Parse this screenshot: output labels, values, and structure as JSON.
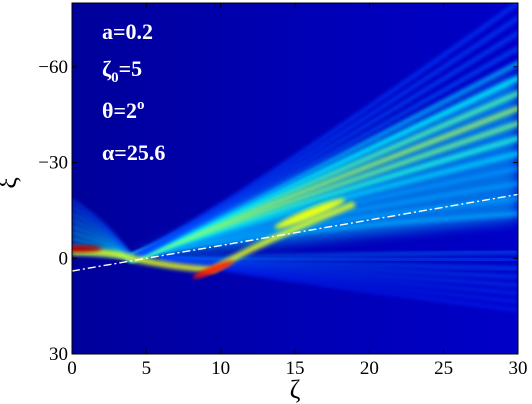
{
  "chart_data": {
    "type": "heatmap",
    "colormap": "jet",
    "title": "",
    "xlabel": "ζ",
    "ylabel": "ξ",
    "xlim": [
      0,
      30
    ],
    "ylim": [
      30,
      -80
    ],
    "y_axis_direction": "reversed (negative values at top)",
    "x_ticks": [
      0,
      5,
      10,
      15,
      20,
      25,
      30
    ],
    "y_ticks": [
      -60,
      -30,
      0,
      30
    ],
    "x_tick_labels": [
      "0",
      "5",
      "10",
      "15",
      "20",
      "25",
      "30"
    ],
    "y_tick_labels": [
      "−60",
      "−30",
      "0",
      "30"
    ],
    "annotations": [
      {
        "base": "a=0.2",
        "sub": "",
        "sup": "",
        "tail": ""
      },
      {
        "base": "ζ",
        "sub": "0",
        "sup": "",
        "tail": "=5"
      },
      {
        "base": "θ=2",
        "sub": "",
        "sup": "o",
        "tail": ""
      },
      {
        "base": "α=25.6",
        "sub": "",
        "sup": "",
        "tail": ""
      }
    ],
    "reference_line": {
      "style": "dash-dot",
      "color": "#ffffff",
      "points": [
        [
          0,
          4
        ],
        [
          30,
          -20
        ]
      ]
    },
    "intensity_features": {
      "background_level": 0.1,
      "hot_spots": [
        {
          "zeta": 0.5,
          "xi": -3,
          "level": 0.95
        },
        {
          "zeta": 9.5,
          "xi": 3.5,
          "level": 0.85
        },
        {
          "zeta": 16,
          "xi": -14,
          "level": 0.6
        }
      ],
      "focus_point": {
        "zeta": 4,
        "xi": 0
      },
      "upper_beam": {
        "from": [
          4,
          0
        ],
        "to": [
          30,
          -55
        ],
        "level": 0.55
      },
      "lower_fan": {
        "from": [
          6,
          0
        ],
        "to": [
          30,
          10
        ],
        "level": 0.25
      }
    }
  }
}
